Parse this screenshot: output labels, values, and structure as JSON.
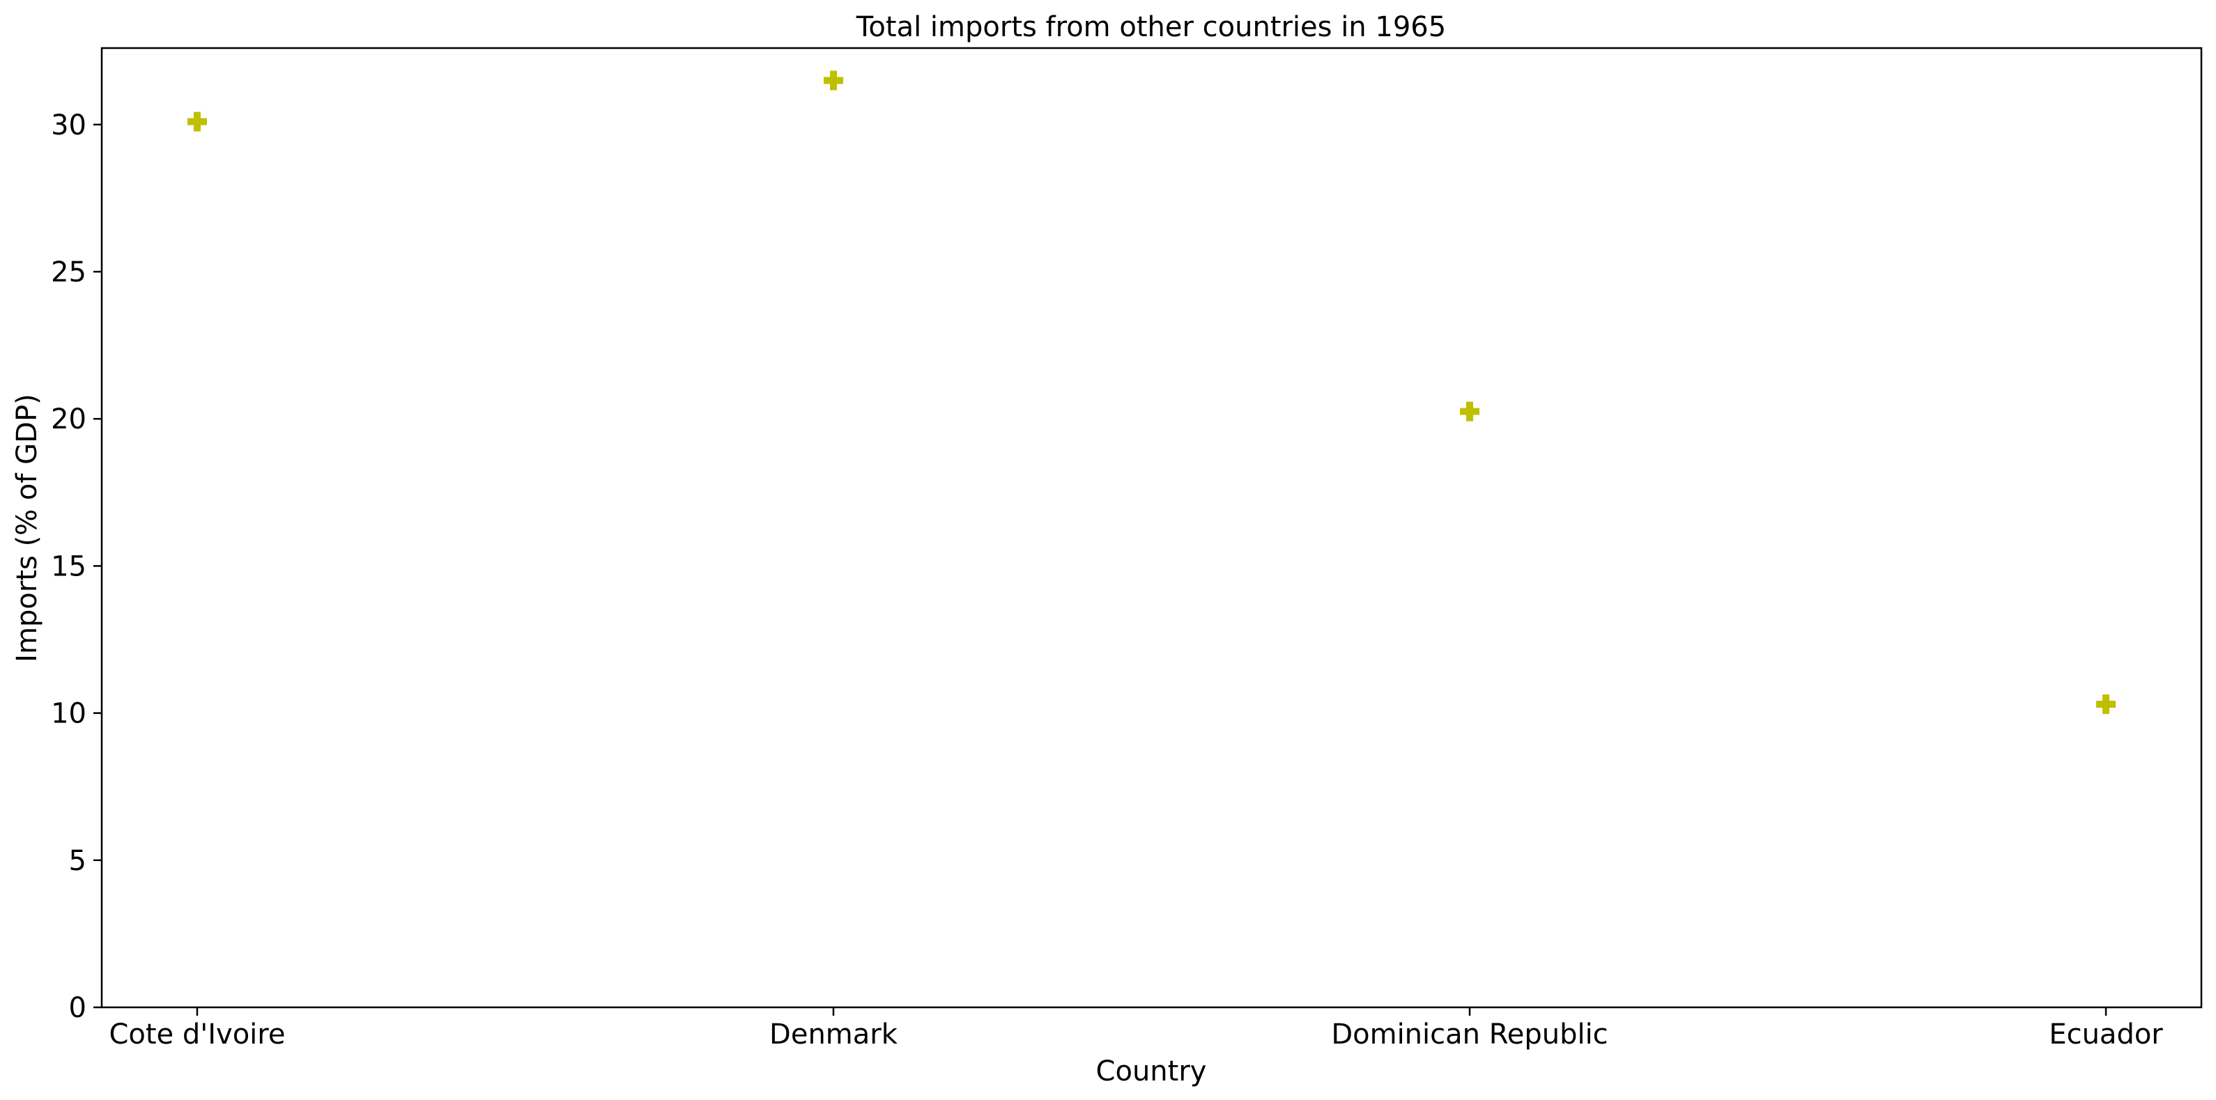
{
  "chart_data": {
    "type": "scatter",
    "title": "Total imports from other countries in 1965",
    "xlabel": "Country",
    "ylabel": "Imports (% of GDP)",
    "categories": [
      "Cote d'Ivoire",
      "Denmark",
      "Dominican Republic",
      "Ecuador"
    ],
    "series": [
      {
        "values": [
          30.1,
          31.5,
          20.25,
          10.3
        ],
        "marker": "plus-filled",
        "color": "#bfbf00"
      }
    ],
    "ylim": [
      0,
      32.6
    ],
    "yticks": [
      0,
      5,
      10,
      15,
      20,
      25,
      30
    ],
    "grid": false
  }
}
